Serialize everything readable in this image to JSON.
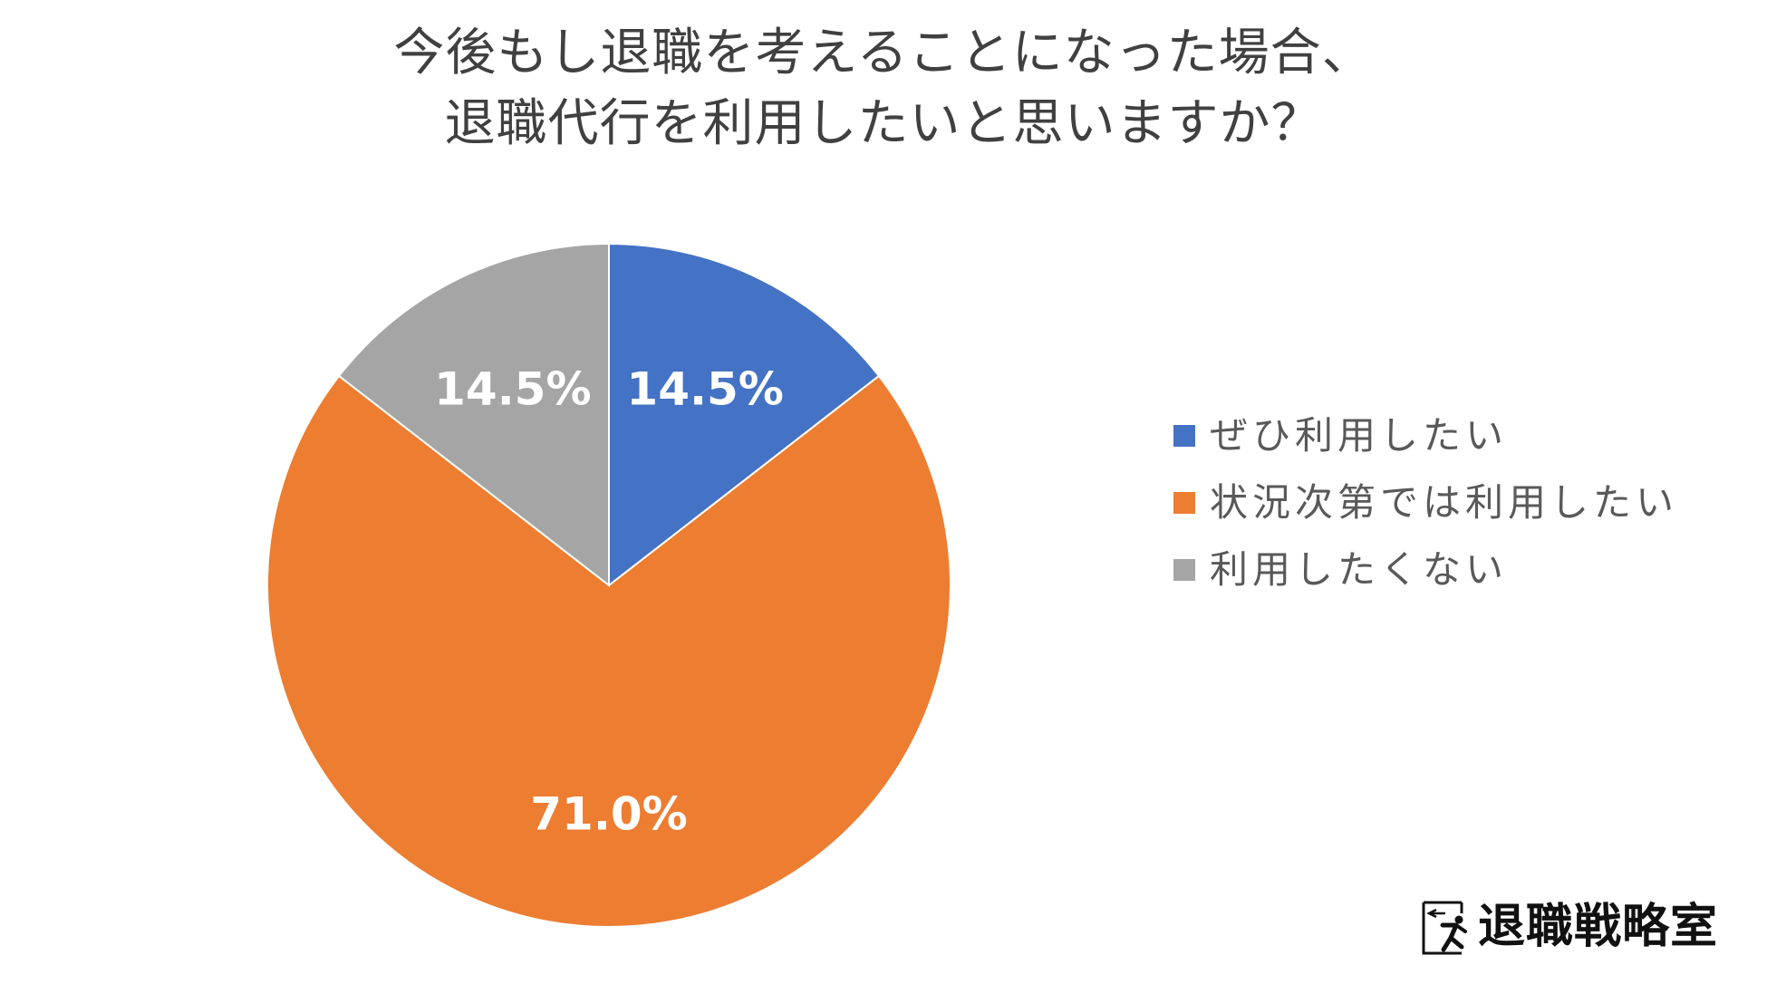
{
  "chart_data": {
    "type": "pie",
    "title_lines": [
      "今後もし退職を考えることになった場合、",
      "退職代行を利用したいと思いますか？"
    ],
    "categories": [
      "ぜひ利用したい",
      "状況次第では利用したい",
      "利用したくない"
    ],
    "values": [
      14.5,
      71.0,
      14.5
    ],
    "data_labels": [
      "14.5%",
      "71.0%",
      "14.5%"
    ],
    "colors": [
      "#4472C4",
      "#ED7D31",
      "#A5A5A5"
    ],
    "legend_position": "right",
    "start_angle": "12 o'clock",
    "direction": "clockwise"
  },
  "logo": {
    "text": "退職戦略室",
    "icon": "running-exit-icon"
  }
}
